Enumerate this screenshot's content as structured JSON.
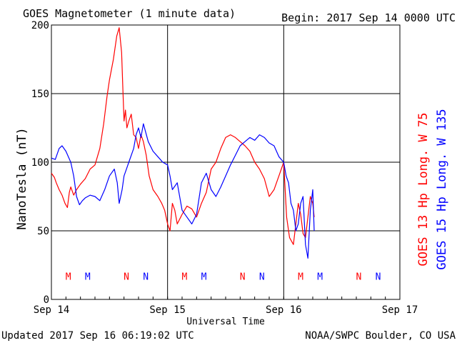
{
  "header": {
    "title": "GOES Magnetometer (1 minute data)",
    "begin": "Begin:  2017 Sep 14 0000 UTC"
  },
  "footer": {
    "updated": "Updated 2017 Sep 16 06:19:02 UTC",
    "credit": "NOAA/SWPC Boulder, CO USA"
  },
  "colors": {
    "series1": "#ff0000",
    "series2": "#0000ff",
    "grid": "#000000",
    "text": "#000000"
  },
  "chart_data": {
    "type": "line",
    "title": "GOES Magnetometer (1 minute data)",
    "xlabel": "Universal Time",
    "ylabel": "NanoTesla (nT)",
    "xlim": [
      0,
      72
    ],
    "x_unit": "hours since 2017 Sep 14 0000 UTC",
    "ylim": [
      0,
      200
    ],
    "yticks": [
      0,
      50,
      100,
      150,
      200
    ],
    "xticks": [
      {
        "x": 0,
        "label": "Sep 14"
      },
      {
        "x": 24,
        "label": "Sep 15"
      },
      {
        "x": 48,
        "label": "Sep 16"
      },
      {
        "x": 72,
        "label": "Sep 17"
      }
    ],
    "grid": true,
    "series": [
      {
        "name": "GOES 13 Hp  Long. W 75",
        "color": "#ff0000",
        "x": [
          0,
          0.6,
          1.0,
          1.6,
          2.2,
          2.8,
          3.3,
          3.7,
          4.0,
          4.6,
          5.2,
          6.0,
          7.0,
          8.0,
          9.0,
          10.0,
          10.8,
          11.5,
          12.0,
          12.8,
          13.5,
          14.0,
          14.5,
          14.8,
          15.0,
          15.3,
          15.6,
          16.0,
          16.5,
          17.0,
          17.5,
          18.0,
          18.5,
          19.0,
          19.6,
          20.2,
          21.0,
          22.0,
          22.8,
          23.4,
          24.0,
          24.5,
          25.0,
          25.5,
          26.0,
          27.0,
          28.0,
          29.0,
          30.0,
          31.0,
          32.0,
          33.0,
          34.0,
          35.0,
          36.0,
          37.0,
          38.0,
          39.0,
          40.0,
          41.0,
          42.0,
          43.0,
          44.0,
          45.0,
          46.0,
          47.0,
          48.0,
          48.6,
          49.2,
          50.0,
          50.5,
          51.0,
          51.5,
          52.0,
          52.5,
          53.0,
          53.5,
          54.0,
          54.3
        ],
        "y": [
          92,
          89,
          85,
          80,
          76,
          70,
          67,
          78,
          82,
          76,
          80,
          84,
          88,
          95,
          98,
          110,
          128,
          148,
          160,
          175,
          192,
          198,
          180,
          150,
          130,
          138,
          125,
          130,
          135,
          120,
          118,
          110,
          120,
          115,
          105,
          90,
          80,
          75,
          70,
          65,
          55,
          50,
          70,
          65,
          55,
          62,
          68,
          66,
          60,
          70,
          78,
          95,
          100,
          110,
          118,
          120,
          118,
          115,
          112,
          108,
          100,
          95,
          88,
          75,
          80,
          90,
          100,
          60,
          45,
          40,
          55,
          70,
          62,
          48,
          45,
          60,
          75,
          70,
          60
        ]
      },
      {
        "name": "GOES 15 Hp  Long. W 135",
        "color": "#0000ff",
        "x": [
          0,
          0.8,
          1.6,
          2.2,
          3.0,
          4.0,
          4.6,
          5.2,
          5.8,
          6.4,
          7.0,
          8.0,
          9.0,
          10.0,
          11.0,
          12.0,
          13.0,
          13.6,
          14.0,
          14.6,
          15.0,
          15.5,
          16.0,
          17.0,
          17.5,
          18.0,
          18.5,
          19.0,
          20.0,
          21.0,
          22.0,
          23.0,
          24.0,
          24.5,
          25.0,
          26.0,
          27.0,
          28.0,
          29.0,
          30.0,
          31.0,
          32.0,
          33.0,
          34.0,
          35.0,
          36.0,
          37.0,
          38.0,
          39.0,
          40.0,
          41.0,
          42.0,
          43.0,
          44.0,
          45.0,
          46.0,
          47.0,
          48.0,
          48.5,
          49.0,
          49.5,
          50.0,
          50.5,
          51.0,
          51.5,
          52.0,
          52.5,
          53.0,
          53.5,
          54.0,
          54.3
        ],
        "y": [
          103,
          102,
          110,
          112,
          108,
          100,
          90,
          75,
          69,
          72,
          74,
          76,
          75,
          72,
          80,
          90,
          95,
          85,
          70,
          80,
          90,
          95,
          100,
          110,
          120,
          125,
          118,
          128,
          115,
          108,
          104,
          100,
          98,
          90,
          80,
          85,
          65,
          60,
          55,
          62,
          85,
          92,
          80,
          75,
          82,
          90,
          98,
          105,
          112,
          115,
          118,
          116,
          120,
          118,
          114,
          112,
          104,
          100,
          90,
          85,
          70,
          65,
          50,
          55,
          70,
          75,
          40,
          30,
          65,
          80,
          50
        ]
      }
    ],
    "annotations": [
      {
        "x": 3.5,
        "label": "M",
        "color": "#ff0000"
      },
      {
        "x": 7.5,
        "label": "M",
        "color": "#0000ff"
      },
      {
        "x": 15.5,
        "label": "N",
        "color": "#ff0000"
      },
      {
        "x": 19.5,
        "label": "N",
        "color": "#0000ff"
      },
      {
        "x": 27.5,
        "label": "M",
        "color": "#ff0000"
      },
      {
        "x": 31.5,
        "label": "M",
        "color": "#0000ff"
      },
      {
        "x": 39.5,
        "label": "N",
        "color": "#ff0000"
      },
      {
        "x": 43.5,
        "label": "N",
        "color": "#0000ff"
      },
      {
        "x": 51.5,
        "label": "M",
        "color": "#ff0000"
      },
      {
        "x": 55.5,
        "label": "M",
        "color": "#0000ff"
      },
      {
        "x": 63.5,
        "label": "N",
        "color": "#ff0000"
      },
      {
        "x": 67.5,
        "label": "N",
        "color": "#0000ff"
      }
    ],
    "annotation_y": 17
  }
}
